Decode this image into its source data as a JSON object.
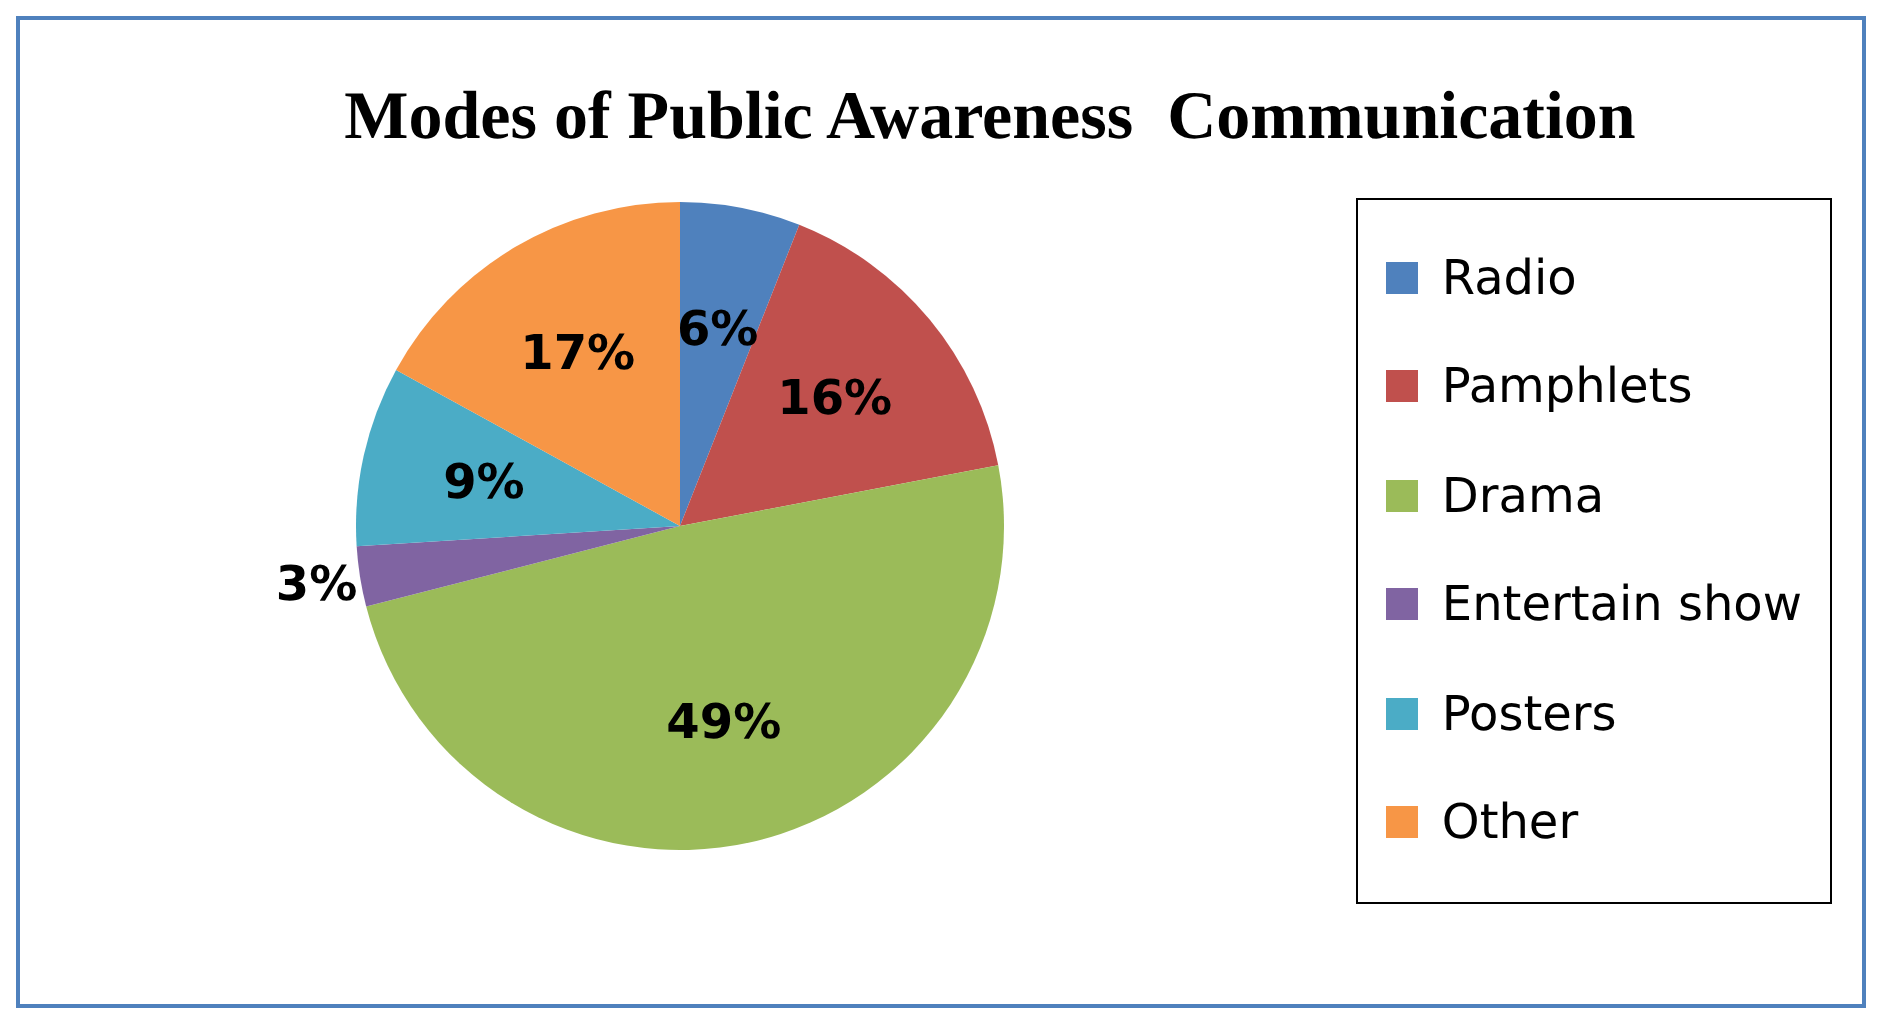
{
  "chart_data": {
    "type": "pie",
    "title": "Modes of Public Awareness  Communication",
    "categories": [
      "Radio",
      "Pamphlets",
      "Drama",
      "Entertain show",
      "Posters",
      "Other"
    ],
    "values": [
      6,
      16,
      49,
      3,
      9,
      17
    ],
    "colors": [
      "#4f81bd",
      "#c0504d",
      "#9bbb59",
      "#8064a2",
      "#4bacc6",
      "#f79646"
    ],
    "value_labels": [
      "6%",
      "16%",
      "49%",
      "3%",
      "9%",
      "17%"
    ],
    "legend": "right"
  }
}
